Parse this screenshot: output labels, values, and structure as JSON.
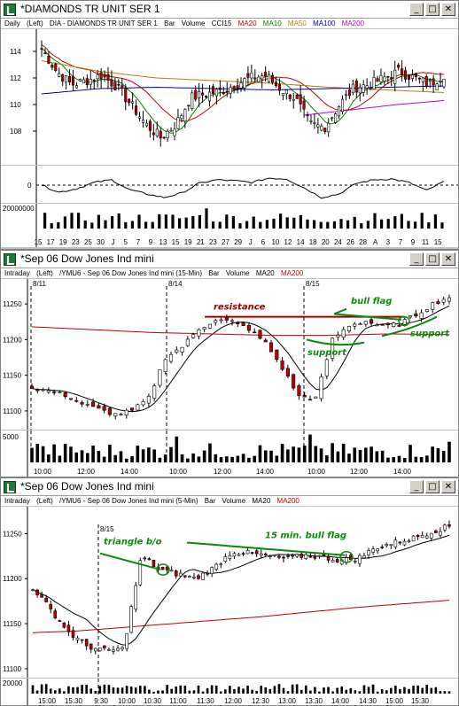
{
  "window1": {
    "title": "*DIAMONDS TR UNIT SER 1",
    "period": "Daily",
    "side": "(Left)",
    "symbol": "DIA - DIAMONDS TR UNIT SER 1",
    "chart_kind": "Bar",
    "volume_label": "Volume",
    "cci_label": "CCI15",
    "ma_labels": [
      "MA20",
      "MA10",
      "MA50",
      "MA100",
      "MA200"
    ],
    "price_ticks": [
      "114",
      "112",
      "110",
      "108"
    ],
    "cci_tick": "0",
    "volume_tick": "20000000",
    "date_ticks": [
      "15",
      "17",
      "19",
      "23",
      "25",
      "30",
      "J",
      "5",
      "7",
      "9",
      "13",
      "15",
      "19",
      "21",
      "23",
      "27",
      "29",
      "J",
      "6",
      "10",
      "12",
      "14",
      "18",
      "20",
      "24",
      "26",
      "28",
      "A",
      "3",
      "7",
      "9",
      "11",
      "15"
    ]
  },
  "window2": {
    "title": "*Sep 06  Dow Jones Ind mini",
    "period": "Intraday",
    "side": "(Left)",
    "symbol": "/YMU6 - Sep 06  Dow Jones Ind mini (15-Min)",
    "chart_kind": "Bar",
    "volume_label": "Volume",
    "ma_labels": [
      "MA20",
      "MA200"
    ],
    "price_ticks": [
      "11250",
      "11200",
      "11150",
      "11100"
    ],
    "volume_tick": "5000",
    "session_labels": [
      "8/11",
      "8/14",
      "8/15"
    ],
    "time_ticks": [
      "10:00",
      "12:00",
      "14:00",
      "10:00",
      "12:00",
      "14:00",
      "10:00",
      "12:00",
      "14:00"
    ],
    "annotations": {
      "resistance": "resistance",
      "bull_flag": "bull flag",
      "support_left": "support",
      "support_right": "support"
    }
  },
  "window3": {
    "title": "*Sep 06  Dow Jones Ind mini",
    "period": "Intraday",
    "side": "(Left)",
    "symbol": "/YMU6 - Sep 06  Dow Jones Ind mini (5-Min)",
    "chart_kind": "Bar",
    "volume_label": "Volume",
    "ma_labels": [
      "MA20",
      "MA200"
    ],
    "price_ticks": [
      "11250",
      "11200",
      "11150",
      "11100"
    ],
    "volume_tick": "20000",
    "session_label": "8/15",
    "time_ticks": [
      "15:00",
      "15:30",
      "9:30",
      "10:00",
      "10:30",
      "11:00",
      "11:30",
      "12:00",
      "12:30",
      "13:00",
      "13:30",
      "14:00",
      "14:30",
      "15:00",
      "15:30"
    ],
    "annotations": {
      "triangle": "triangle b/o",
      "bull_flag": "15 min. bull flag"
    }
  },
  "colors": {
    "up_candle": "#ffffff",
    "down_candle": "#c00000",
    "ma20": "#c00000",
    "ma10": "#008000",
    "ma50": "#b08000",
    "ma100": "#0000a0",
    "ma200": "#c000c0",
    "annotation_green": "#0a8a0a",
    "annotation_red": "#a00000"
  }
}
